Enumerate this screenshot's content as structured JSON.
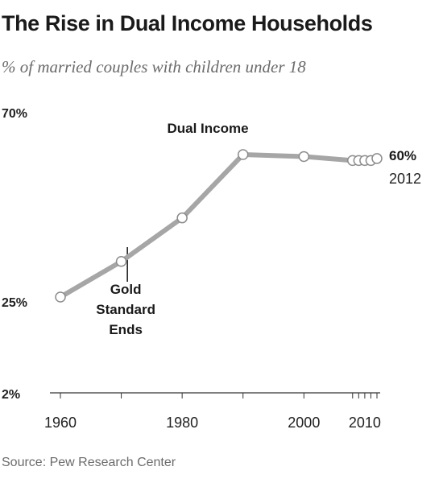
{
  "title": "The Rise in Dual Income Households",
  "subtitle": "% of married couples with children under 18",
  "source": "Source: Pew Research Center",
  "chart_data": {
    "type": "line",
    "series": [
      {
        "name": "Dual Income",
        "x": [
          1960,
          1970,
          1980,
          1990,
          2000,
          2008,
          2009,
          2010,
          2011,
          2012
        ],
        "values": [
          25,
          34,
          45,
          61,
          60.5,
          59.5,
          59.5,
          59.5,
          59.5,
          60
        ]
      }
    ],
    "y_tick_labels": [
      {
        "value": 70,
        "label": "70%"
      },
      {
        "value": 25,
        "label": "25%"
      },
      {
        "value": 2,
        "label": "2%"
      }
    ],
    "x_tick_labels": [
      {
        "value": 1960,
        "label": "1960"
      },
      {
        "value": 1980,
        "label": "1980"
      },
      {
        "value": 2000,
        "label": "2000"
      },
      {
        "value": 2010,
        "label": "2010"
      }
    ],
    "x_minor_ticks": [
      1960,
      1970,
      1980,
      1990,
      2000,
      2008,
      2009,
      2010,
      2011,
      2012
    ],
    "xlim": [
      1960,
      2012
    ],
    "ylim": [
      2,
      70
    ],
    "end_label": {
      "value": "60%",
      "year": "2012"
    },
    "annotations": [
      {
        "text": "Dual Income"
      },
      {
        "lines": [
          "Gold",
          "Standard",
          "Ends"
        ],
        "year": 1971
      }
    ],
    "colors": {
      "line": "#a6a6a6",
      "marker_fill": "#ffffff",
      "marker_stroke": "#8c8c8c",
      "axis": "#333333"
    }
  }
}
